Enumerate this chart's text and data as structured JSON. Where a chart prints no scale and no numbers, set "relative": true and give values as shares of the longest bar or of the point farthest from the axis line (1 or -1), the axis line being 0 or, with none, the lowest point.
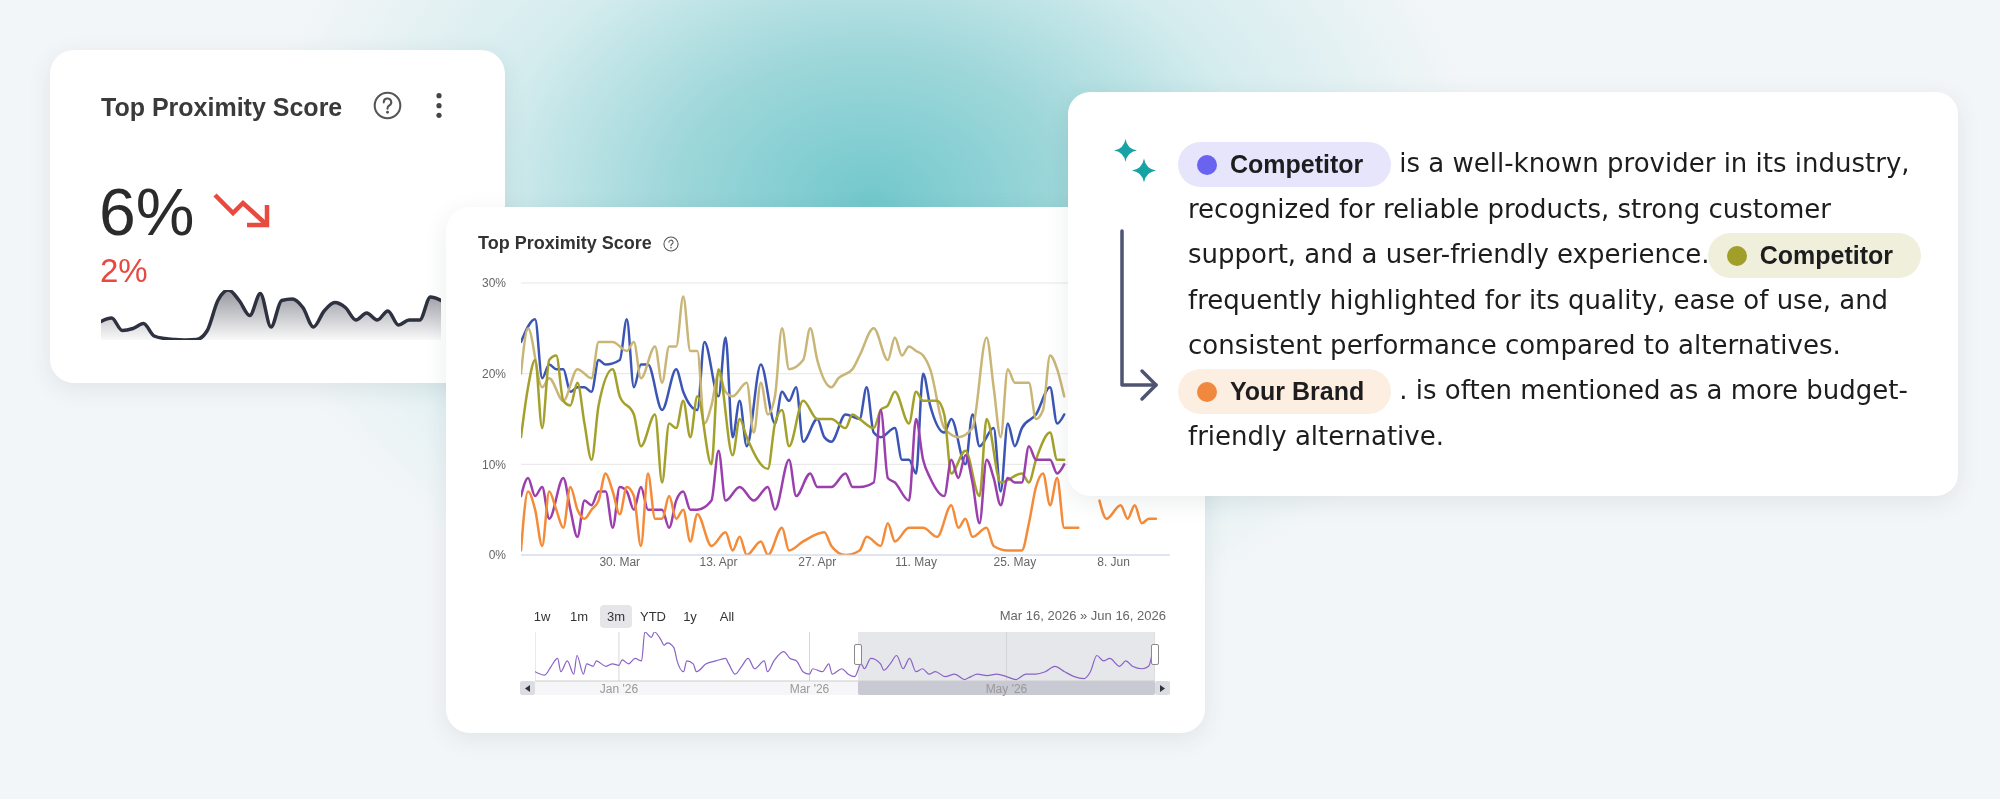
{
  "chart_data": [
    {
      "type": "other",
      "title": "Top Proximity Score",
      "annotations": [
        "6%",
        "2%"
      ]
    },
    {
      "type": "area",
      "relative": true,
      "categories": [
        null,
        null,
        null,
        null,
        null,
        null,
        null,
        null,
        null,
        null,
        null,
        null,
        null,
        null,
        null,
        null,
        null,
        null,
        null,
        null,
        null,
        null,
        null,
        null,
        null,
        null,
        null,
        null,
        null,
        null,
        null,
        null,
        null
      ],
      "color": "#2e3140",
      "values": [
        0.37,
        0.44,
        0.19,
        0.23,
        0.33,
        0.08,
        0.03,
        0.01,
        0,
        0.01,
        0.19,
        0.79,
        1,
        0.79,
        0.49,
        0.93,
        0.26,
        0.79,
        0.82,
        0.65,
        0.26,
        0.58,
        0.75,
        0.65,
        0.4,
        0.54,
        0.4,
        0.58,
        0.3,
        0.4,
        0.4,
        0.86,
        0.79
      ]
    },
    {
      "type": "line",
      "title": "Top Proximity Score",
      "xlim": [
        "2026-03-16",
        "2026-06-16"
      ],
      "xticks": [
        {
          "value": "2026-03-30",
          "label": "30. Mar"
        },
        {
          "value": "2026-04-13",
          "label": "13. Apr"
        },
        {
          "value": "2026-04-27",
          "label": "27. Apr"
        },
        {
          "value": "2026-05-11",
          "label": "11. May"
        },
        {
          "value": "2026-05-25",
          "label": "25. May"
        },
        {
          "value": "2026-06-08",
          "label": "8. Jun"
        }
      ],
      "ylim": [
        0,
        30
      ],
      "yticks": [
        {
          "value": 0,
          "label": "0%"
        },
        {
          "value": 10,
          "label": "10%"
        },
        {
          "value": 20,
          "label": "20%"
        },
        {
          "value": 30,
          "label": "30%"
        }
      ],
      "grid": "y",
      "series": [
        {
          "color": "#3b55b5",
          "x": [
            "2026-03-16",
            "2026-03-18",
            "2026-03-19",
            "2026-03-20",
            "2026-03-21",
            "2026-03-22",
            "2026-03-23",
            "2026-03-24",
            "2026-03-25",
            "2026-03-26",
            "2026-03-27",
            "2026-03-28",
            "2026-03-30",
            "2026-03-31",
            "2026-04-01",
            "2026-04-02",
            "2026-04-03",
            "2026-04-05",
            "2026-04-07",
            "2026-04-08",
            "2026-04-10",
            "2026-04-11",
            "2026-04-13",
            "2026-04-14",
            "2026-04-15",
            "2026-04-16",
            "2026-04-17",
            "2026-04-19",
            "2026-04-21",
            "2026-04-22",
            "2026-04-23",
            "2026-04-24",
            "2026-04-25",
            "2026-04-27",
            "2026-04-28",
            "2026-04-29",
            "2026-05-01",
            "2026-05-03",
            "2026-05-04",
            "2026-05-05",
            "2026-05-06",
            "2026-05-08",
            "2026-05-09",
            "2026-05-10",
            "2026-05-11",
            "2026-05-12",
            "2026-05-13",
            "2026-05-15",
            "2026-05-16",
            "2026-05-18",
            "2026-05-19",
            "2026-05-20",
            "2026-05-22",
            "2026-05-23",
            "2026-05-24",
            "2026-05-25",
            "2026-05-26",
            "2026-05-28",
            "2026-05-30",
            "2026-05-31",
            "2026-06-01"
          ],
          "values": [
            23.5,
            26,
            19.5,
            21,
            20.5,
            20.5,
            18,
            18.5,
            18.5,
            18,
            21.5,
            21,
            21.5,
            26,
            18.5,
            21,
            21,
            16,
            20.5,
            18,
            16,
            23.5,
            17.5,
            24,
            13,
            17,
            12,
            21,
            14.5,
            18,
            17,
            18.5,
            12.5,
            15,
            13,
            12.5,
            15.5,
            15,
            18.5,
            13.5,
            13,
            14,
            10.5,
            10.5,
            9,
            20,
            16.5,
            13.5,
            15,
            10,
            15.5,
            12,
            14,
            7,
            14.5,
            12,
            14,
            15.5,
            18.5,
            14.5,
            15.5
          ]
        },
        {
          "color": "#c9b677",
          "x": [
            "2026-03-16",
            "2026-03-17",
            "2026-03-19",
            "2026-03-20",
            "2026-03-22",
            "2026-03-24",
            "2026-03-26",
            "2026-03-27",
            "2026-03-29",
            "2026-03-31",
            "2026-04-01",
            "2026-04-02",
            "2026-04-04",
            "2026-04-05",
            "2026-04-06",
            "2026-04-07",
            "2026-04-08",
            "2026-04-09",
            "2026-04-10",
            "2026-04-11",
            "2026-04-12",
            "2026-04-13",
            "2026-04-14",
            "2026-04-15",
            "2026-04-17",
            "2026-04-18",
            "2026-04-19",
            "2026-04-20",
            "2026-04-21",
            "2026-04-22",
            "2026-04-23",
            "2026-04-25",
            "2026-04-26",
            "2026-04-27",
            "2026-04-29",
            "2026-04-30",
            "2026-05-02",
            "2026-05-03",
            "2026-05-05",
            "2026-05-07",
            "2026-05-08",
            "2026-05-09",
            "2026-05-10",
            "2026-05-11",
            "2026-05-12",
            "2026-05-13",
            "2026-05-15",
            "2026-05-17",
            "2026-05-19",
            "2026-05-21",
            "2026-05-22",
            "2026-05-23",
            "2026-05-24",
            "2026-05-25",
            "2026-05-27",
            "2026-05-28",
            "2026-05-29",
            "2026-05-30",
            "2026-05-31",
            "2026-06-01"
          ],
          "values": [
            20,
            25,
            18.5,
            19.5,
            17,
            20.5,
            19.5,
            23.5,
            23.5,
            22.5,
            23.5,
            19.5,
            23,
            19,
            23,
            23,
            28.5,
            22.5,
            22.5,
            14.5,
            16.5,
            20,
            18,
            17.5,
            19,
            13.5,
            19,
            15.5,
            17.5,
            25,
            20.5,
            21.5,
            25,
            21.5,
            18.5,
            19.5,
            20.5,
            22,
            25,
            21.5,
            24,
            22,
            23,
            22.5,
            22,
            20.5,
            14,
            13,
            14,
            24,
            18.5,
            13,
            20.5,
            19,
            19,
            15,
            16,
            22,
            20.5,
            17.5
          ]
        },
        {
          "color": "#a3a12c",
          "x": [
            "2026-03-16",
            "2026-03-17",
            "2026-03-18",
            "2026-03-19",
            "2026-03-20",
            "2026-03-21",
            "2026-03-22",
            "2026-03-23",
            "2026-03-24",
            "2026-03-25",
            "2026-03-26",
            "2026-03-27",
            "2026-03-29",
            "2026-03-30",
            "2026-04-01",
            "2026-04-02",
            "2026-04-04",
            "2026-04-05",
            "2026-04-06",
            "2026-04-07",
            "2026-04-08",
            "2026-04-09",
            "2026-04-10",
            "2026-04-12",
            "2026-04-13",
            "2026-04-15",
            "2026-04-16",
            "2026-04-17",
            "2026-04-20",
            "2026-04-21",
            "2026-04-22",
            "2026-04-23",
            "2026-04-25",
            "2026-04-27",
            "2026-04-29",
            "2026-05-01",
            "2026-05-02",
            "2026-05-03",
            "2026-05-05",
            "2026-05-06",
            "2026-05-07",
            "2026-05-08",
            "2026-05-10",
            "2026-05-11",
            "2026-05-12",
            "2026-05-14",
            "2026-05-15",
            "2026-05-16",
            "2026-05-18",
            "2026-05-20",
            "2026-05-21",
            "2026-05-23",
            "2026-05-26",
            "2026-05-27",
            "2026-05-28",
            "2026-05-30",
            "2026-05-31",
            "2026-06-01"
          ],
          "values": [
            13,
            18.5,
            21.5,
            14,
            21.5,
            22,
            17,
            16.5,
            19,
            14.5,
            10.5,
            16.5,
            20.5,
            17.5,
            15.5,
            12,
            15.5,
            8,
            14.5,
            14,
            17,
            13,
            17.5,
            10,
            20.5,
            11,
            15,
            13,
            9.5,
            14.5,
            16,
            12,
            17,
            15,
            15,
            14,
            15.5,
            15,
            14,
            16,
            16.5,
            18,
            14.5,
            18,
            17,
            17,
            15.5,
            9,
            11.5,
            6.5,
            15,
            8,
            9,
            8,
            10.5,
            13.5,
            10.5,
            10.5
          ]
        },
        {
          "color": "#9c3fae",
          "x": [
            "2026-03-16",
            "2026-03-17",
            "2026-03-18",
            "2026-03-19",
            "2026-03-20",
            "2026-03-22",
            "2026-03-23",
            "2026-03-24",
            "2026-03-25",
            "2026-03-26",
            "2026-03-27",
            "2026-03-28",
            "2026-03-29",
            "2026-03-30",
            "2026-03-31",
            "2026-04-01",
            "2026-04-02",
            "2026-04-03",
            "2026-04-05",
            "2026-04-06",
            "2026-04-07",
            "2026-04-08",
            "2026-04-09",
            "2026-04-10",
            "2026-04-12",
            "2026-04-13",
            "2026-04-14",
            "2026-04-16",
            "2026-04-18",
            "2026-04-20",
            "2026-04-21",
            "2026-04-23",
            "2026-04-24",
            "2026-04-26",
            "2026-04-27",
            "2026-04-29",
            "2026-05-01",
            "2026-05-02",
            "2026-05-03",
            "2026-05-05",
            "2026-05-06",
            "2026-05-07",
            "2026-05-08",
            "2026-05-10",
            "2026-05-11",
            "2026-05-12",
            "2026-05-13",
            "2026-05-15",
            "2026-05-16",
            "2026-05-17",
            "2026-05-18",
            "2026-05-19",
            "2026-05-20",
            "2026-05-21",
            "2026-05-22",
            "2026-05-23",
            "2026-05-24",
            "2026-05-25",
            "2026-05-26",
            "2026-05-27",
            "2026-05-28",
            "2026-05-30",
            "2026-05-31",
            "2026-06-01"
          ],
          "values": [
            6.5,
            8.5,
            6.5,
            7.5,
            4,
            8.5,
            5,
            2,
            6,
            5.5,
            7,
            7,
            3,
            7.5,
            7,
            5,
            7.5,
            5,
            5,
            3,
            6,
            7,
            5,
            5,
            6,
            11.5,
            6,
            7.5,
            6,
            7.5,
            5,
            10.5,
            6.5,
            9,
            7.5,
            7.5,
            9,
            7.5,
            7.5,
            8,
            16,
            8.5,
            8,
            6,
            15,
            10.5,
            8.5,
            6.5,
            10.5,
            8.5,
            11,
            8,
            3.5,
            10.5,
            8.5,
            5.5,
            8.5,
            8,
            8,
            12,
            10.5,
            10.5,
            9,
            10
          ]
        },
        {
          "color": "#f48b39",
          "x": [
            "2026-03-16",
            "2026-03-17",
            "2026-03-18",
            "2026-03-19",
            "2026-03-20",
            "2026-03-21",
            "2026-03-22",
            "2026-03-23",
            "2026-03-24",
            "2026-03-25",
            "2026-03-26",
            "2026-03-27",
            "2026-03-28",
            "2026-03-29",
            "2026-03-30",
            "2026-03-31",
            "2026-04-01",
            "2026-04-02",
            "2026-04-03",
            "2026-04-04",
            "2026-04-05",
            "2026-04-06",
            "2026-04-07",
            "2026-04-08",
            "2026-04-09",
            "2026-04-10",
            "2026-04-12",
            "2026-04-14",
            "2026-04-15",
            "2026-04-16",
            "2026-04-17",
            "2026-04-19",
            "2026-04-20",
            "2026-04-22",
            "2026-04-23",
            "2026-04-25",
            "2026-04-28",
            "2026-04-29",
            "2026-05-01",
            "2026-05-03",
            "2026-05-04",
            "2026-05-06",
            "2026-05-07",
            "2026-05-08",
            "2026-05-10",
            "2026-05-12",
            "2026-05-14",
            "2026-05-16",
            "2026-05-17",
            "2026-05-18",
            "2026-05-19",
            "2026-05-21",
            "2026-05-22",
            "2026-05-24",
            "2026-05-26",
            "2026-05-27",
            "2026-05-28",
            "2026-05-29",
            "2026-05-30",
            "2026-05-31",
            "2026-06-01",
            "2026-06-03",
            "2026-06-04",
            "2026-06-06",
            "2026-06-07",
            "2026-06-09",
            "2026-06-10",
            "2026-06-11",
            "2026-06-12",
            "2026-06-13",
            "2026-06-14"
          ],
          "values": [
            0.5,
            7,
            5,
            1,
            7,
            5,
            3,
            7.5,
            5,
            4,
            5,
            6,
            9,
            7,
            4.5,
            7.5,
            6.5,
            1,
            9,
            4,
            4,
            6.5,
            4,
            5,
            1.5,
            4.5,
            1,
            2.5,
            0.5,
            2,
            0,
            1.5,
            0,
            3,
            0.5,
            1.5,
            2.5,
            1,
            0,
            0.5,
            2,
            1,
            3.5,
            1.5,
            3,
            3,
            2,
            5.5,
            3,
            4,
            2,
            3,
            1,
            0.5,
            0.5,
            3.5,
            7.5,
            9,
            5.5,
            8.5,
            3,
            3,
            null,
            6,
            4,
            5.5,
            4,
            5.5,
            3.5,
            4,
            4
          ]
        }
      ]
    },
    {
      "type": "line",
      "relative": true,
      "xlim": [
        "2025-12-06",
        "2026-06-16"
      ],
      "xticks": [
        {
          "value": "2026-01-01",
          "label": "Jan '26"
        },
        {
          "value": "2026-03-01",
          "label": "Mar '26"
        },
        {
          "value": "2026-05-01",
          "label": "May '26"
        }
      ],
      "grid": "x",
      "bands": [
        {
          "axis": "x",
          "from": "2026-03-16",
          "to": "2026-06-16",
          "color": "#e6e7ea"
        }
      ],
      "annotations": [
        "1w",
        "1m",
        "3m",
        "YTD",
        "1y",
        "All",
        "Mar 16, 2026 » Jun 16, 2026"
      ],
      "series": [
        {
          "color": "#8a62c6",
          "x": [
            "2025-12-06",
            "2025-12-09",
            "2025-12-11",
            "2025-12-13",
            "2025-12-14",
            "2025-12-16",
            "2025-12-18",
            "2025-12-19",
            "2025-12-21",
            "2025-12-22",
            "2025-12-24",
            "2025-12-25",
            "2025-12-28",
            "2025-12-30",
            "2026-01-01",
            "2026-01-02",
            "2026-01-04",
            "2026-01-06",
            "2026-01-08",
            "2026-01-09",
            "2026-01-11",
            "2026-01-12",
            "2026-01-14",
            "2026-01-15",
            "2026-01-16",
            "2026-01-18",
            "2026-01-19",
            "2026-01-21",
            "2026-01-22",
            "2026-01-24",
            "2026-01-25",
            "2026-01-28",
            "2026-01-31",
            "2026-02-03",
            "2026-02-04",
            "2026-02-06",
            "2026-02-08",
            "2026-02-10",
            "2026-02-12",
            "2026-02-15",
            "2026-02-16",
            "2026-02-18",
            "2026-02-21",
            "2026-02-23",
            "2026-02-25",
            "2026-02-27",
            "2026-03-01",
            "2026-03-02",
            "2026-03-05",
            "2026-03-07",
            "2026-03-08",
            "2026-03-11",
            "2026-03-13",
            "2026-03-15",
            "2026-03-17",
            "2026-03-18",
            "2026-03-20",
            "2026-03-23",
            "2026-03-24",
            "2026-03-26",
            "2026-03-28",
            "2026-03-30",
            "2026-04-01",
            "2026-04-03",
            "2026-04-05",
            "2026-04-07",
            "2026-04-09",
            "2026-04-12",
            "2026-04-15",
            "2026-04-18",
            "2026-04-20",
            "2026-04-22",
            "2026-04-25",
            "2026-04-28",
            "2026-05-01",
            "2026-05-04",
            "2026-05-07",
            "2026-05-10",
            "2026-05-13",
            "2026-05-16",
            "2026-05-19",
            "2026-05-22",
            "2026-05-25",
            "2026-05-27",
            "2026-05-29",
            "2026-05-31",
            "2026-06-02",
            "2026-06-05",
            "2026-06-07",
            "2026-06-09",
            "2026-06-12",
            "2026-06-14",
            "2026-06-15"
          ],
          "values": [
            0.19,
            0.12,
            0.3,
            0.46,
            0.19,
            0.41,
            0.14,
            0.52,
            0.14,
            0.35,
            0.3,
            0.41,
            0.3,
            0.35,
            0.32,
            0.43,
            0.35,
            0.46,
            0.41,
            1,
            0.89,
            1,
            0.84,
            0.73,
            0.78,
            0.68,
            0.41,
            0.19,
            0.41,
            0.35,
            0.19,
            0.35,
            0.41,
            0.46,
            0.35,
            0.14,
            0.3,
            0.46,
            0.25,
            0.41,
            0.19,
            0.41,
            0.6,
            0.46,
            0.41,
            0.19,
            0.14,
            0.25,
            0.19,
            0.35,
            0.14,
            0.25,
            0.14,
            0.09,
            0.35,
            0.25,
            0.46,
            0.35,
            0.22,
            0.35,
            0.52,
            0.25,
            0.46,
            0.19,
            0.25,
            0.14,
            0.19,
            0.09,
            0.14,
            0.03,
            0.09,
            0.14,
            0.11,
            0.14,
            0.09,
            0.03,
            0.14,
            0.14,
            0.19,
            0.3,
            0.19,
            0.09,
            0.05,
            0.19,
            0.52,
            0.41,
            0.46,
            0.3,
            0.41,
            0.3,
            0.25,
            0.3,
            0.52
          ]
        }
      ]
    },
    {
      "type": "other",
      "annotations": [
        "Competitor",
        "is a well-known provider in its industry,",
        "recognized for reliable products, strong customer",
        "support, and a user-friendly experience.",
        "Competitor",
        "frequently highlighted for its quality, ease of use, and",
        "consistent performance compared to alternatives.",
        "Your Brand",
        ". is often mentioned as a more budget-",
        "friendly alternative."
      ]
    }
  ]
}
